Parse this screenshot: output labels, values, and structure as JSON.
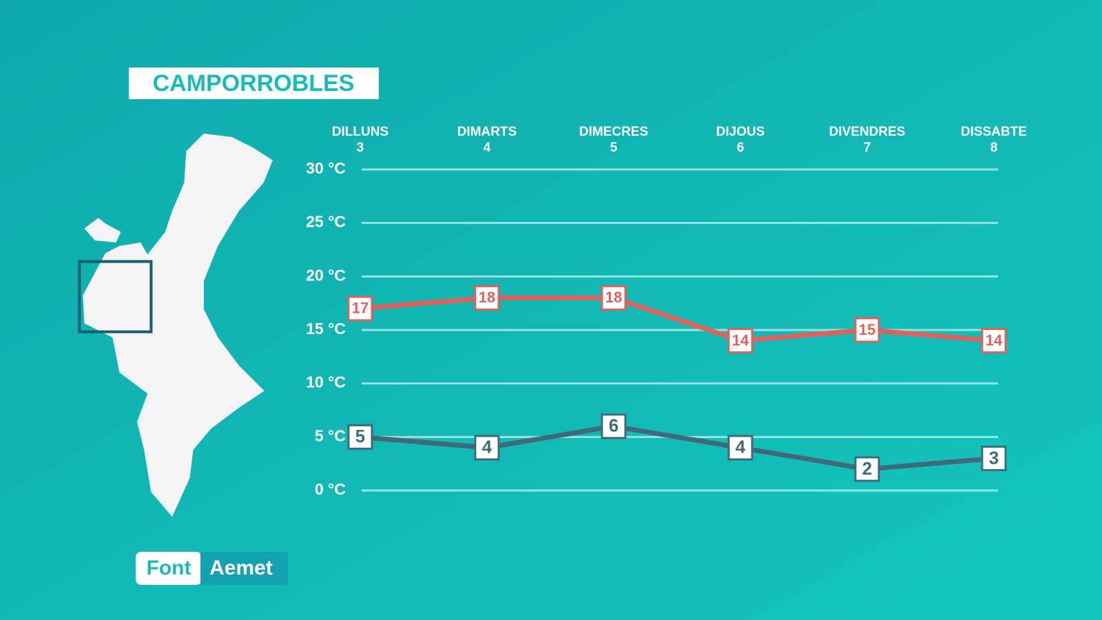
{
  "chart_data": {
    "type": "line",
    "title": "CAMPORROBLES",
    "categories": [
      [
        "DILLUNS",
        "3"
      ],
      [
        "DIMARTS",
        "4"
      ],
      [
        "DIMECRES",
        "5"
      ],
      [
        "DIJOUS",
        "6"
      ],
      [
        "DIVENDRES",
        "7"
      ],
      [
        "DISSABTE",
        "8"
      ]
    ],
    "series": [
      {
        "color": "#e0605c",
        "values": [
          17,
          18,
          18,
          14,
          15,
          14
        ]
      },
      {
        "color": "#3f6a7c",
        "values": [
          5,
          4,
          6,
          4,
          2,
          3
        ]
      }
    ],
    "ylim": [
      0,
      30
    ],
    "yticks": [
      {
        "value": 0,
        "label": "0 °C"
      },
      {
        "value": 5,
        "label": "5 °C"
      },
      {
        "value": 10,
        "label": "10 °C"
      },
      {
        "value": 15,
        "label": "15 °C"
      },
      {
        "value": 20,
        "label": "20 °C"
      },
      {
        "value": 25,
        "label": "25 °C"
      },
      {
        "value": 30,
        "label": "30 °C"
      }
    ],
    "grid": true,
    "source_label": "Font",
    "source": "Aemet"
  }
}
